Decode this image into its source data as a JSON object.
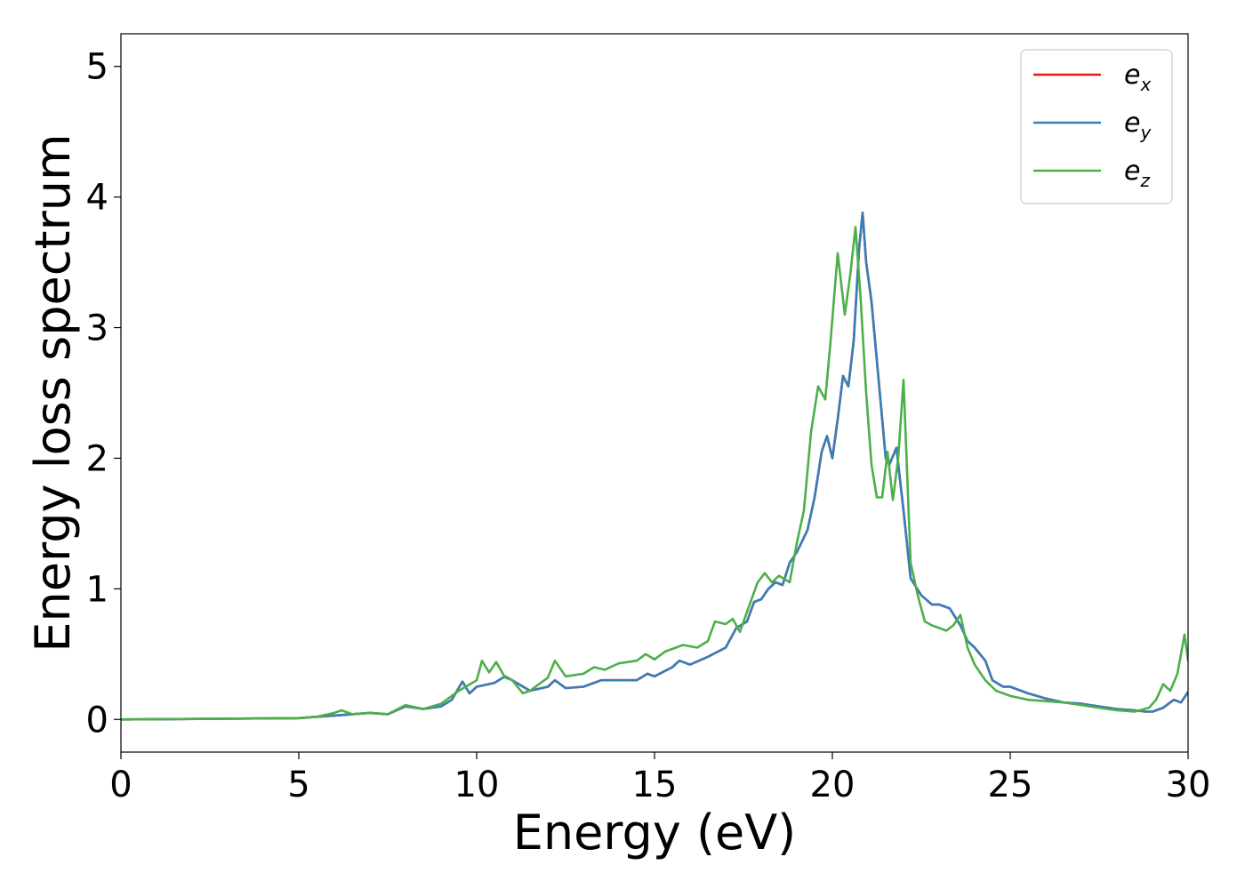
{
  "chart_data": {
    "type": "line",
    "xlabel": "Energy (eV)",
    "ylabel": "Energy loss spectrum",
    "xlim": [
      0,
      30
    ],
    "ylim": [
      -0.25,
      5.25
    ],
    "xticks": [
      0,
      5,
      10,
      15,
      20,
      25,
      30
    ],
    "yticks": [
      0,
      1,
      2,
      3,
      4,
      5
    ],
    "xtick_labels": [
      "0",
      "5",
      "10",
      "15",
      "20",
      "25",
      "30"
    ],
    "ytick_labels": [
      "0",
      "1",
      "2",
      "3",
      "4",
      "5"
    ],
    "grid": false,
    "legend_position": "top-right",
    "series": [
      {
        "name": "e_x",
        "legend_base": "e",
        "legend_sub": "x",
        "color": "#e41a1c",
        "x": [
          0,
          5,
          5.5,
          6,
          6.5,
          7,
          7.5,
          8,
          8.5,
          9,
          9.3,
          9.6,
          9.8,
          10,
          10.5,
          10.8,
          11,
          11.5,
          12,
          12.2,
          12.5,
          13,
          13.5,
          14,
          14.5,
          14.8,
          15,
          15.5,
          15.7,
          16,
          16.5,
          17,
          17.3,
          17.6,
          17.8,
          18,
          18.2,
          18.4,
          18.6,
          18.8,
          19,
          19.3,
          19.5,
          19.7,
          19.85,
          20,
          20.15,
          20.3,
          20.45,
          20.6,
          20.75,
          20.85,
          20.95,
          21.1,
          21.3,
          21.5,
          21.6,
          21.8,
          22,
          22.2,
          22.5,
          22.8,
          23,
          23.3,
          23.6,
          23.8,
          24,
          24.3,
          24.5,
          24.8,
          25,
          25.5,
          26,
          26.5,
          27,
          27.5,
          28,
          28.5,
          28.8,
          29,
          29.3,
          29.6,
          29.8,
          30
        ],
        "values": [
          0,
          0.01,
          0.02,
          0.03,
          0.04,
          0.05,
          0.04,
          0.1,
          0.08,
          0.1,
          0.15,
          0.29,
          0.2,
          0.25,
          0.28,
          0.33,
          0.3,
          0.22,
          0.25,
          0.3,
          0.24,
          0.25,
          0.3,
          0.3,
          0.3,
          0.35,
          0.33,
          0.4,
          0.45,
          0.42,
          0.48,
          0.55,
          0.7,
          0.75,
          0.9,
          0.92,
          1.0,
          1.05,
          1.03,
          1.2,
          1.28,
          1.45,
          1.7,
          2.05,
          2.17,
          2.0,
          2.3,
          2.63,
          2.55,
          2.9,
          3.6,
          3.88,
          3.5,
          3.2,
          2.6,
          2.0,
          1.95,
          2.08,
          1.6,
          1.08,
          0.95,
          0.88,
          0.88,
          0.85,
          0.72,
          0.6,
          0.55,
          0.45,
          0.3,
          0.25,
          0.25,
          0.2,
          0.16,
          0.13,
          0.12,
          0.1,
          0.08,
          0.07,
          0.06,
          0.06,
          0.09,
          0.15,
          0.13,
          0.21
        ]
      },
      {
        "name": "e_y",
        "legend_base": "e",
        "legend_sub": "y",
        "color": "#377eb8",
        "x": [
          0,
          5,
          5.5,
          6,
          6.5,
          7,
          7.5,
          8,
          8.5,
          9,
          9.3,
          9.6,
          9.8,
          10,
          10.5,
          10.8,
          11,
          11.5,
          12,
          12.2,
          12.5,
          13,
          13.5,
          14,
          14.5,
          14.8,
          15,
          15.5,
          15.7,
          16,
          16.5,
          17,
          17.3,
          17.6,
          17.8,
          18,
          18.2,
          18.4,
          18.6,
          18.8,
          19,
          19.3,
          19.5,
          19.7,
          19.85,
          20,
          20.15,
          20.3,
          20.45,
          20.6,
          20.75,
          20.85,
          20.95,
          21.1,
          21.3,
          21.5,
          21.6,
          21.8,
          22,
          22.2,
          22.5,
          22.8,
          23,
          23.3,
          23.6,
          23.8,
          24,
          24.3,
          24.5,
          24.8,
          25,
          25.5,
          26,
          26.5,
          27,
          27.5,
          28,
          28.5,
          28.8,
          29,
          29.3,
          29.6,
          29.8,
          30
        ],
        "values": [
          0,
          0.01,
          0.02,
          0.03,
          0.04,
          0.05,
          0.04,
          0.1,
          0.08,
          0.1,
          0.15,
          0.29,
          0.2,
          0.25,
          0.28,
          0.33,
          0.3,
          0.22,
          0.25,
          0.3,
          0.24,
          0.25,
          0.3,
          0.3,
          0.3,
          0.35,
          0.33,
          0.4,
          0.45,
          0.42,
          0.48,
          0.55,
          0.7,
          0.75,
          0.9,
          0.92,
          1.0,
          1.05,
          1.03,
          1.2,
          1.28,
          1.45,
          1.7,
          2.05,
          2.17,
          2.0,
          2.3,
          2.63,
          2.55,
          2.9,
          3.6,
          3.88,
          3.5,
          3.2,
          2.6,
          2.0,
          1.95,
          2.08,
          1.6,
          1.08,
          0.95,
          0.88,
          0.88,
          0.85,
          0.72,
          0.6,
          0.55,
          0.45,
          0.3,
          0.25,
          0.25,
          0.2,
          0.16,
          0.13,
          0.12,
          0.1,
          0.08,
          0.07,
          0.06,
          0.06,
          0.09,
          0.15,
          0.13,
          0.21
        ]
      },
      {
        "name": "e_z",
        "legend_base": "e",
        "legend_sub": "z",
        "color": "#4daf4a",
        "x": [
          0,
          5,
          5.5,
          6,
          6.2,
          6.5,
          7,
          7.5,
          8,
          8.5,
          9,
          9.5,
          10,
          10.15,
          10.35,
          10.55,
          10.8,
          11,
          11.3,
          11.5,
          12,
          12.2,
          12.5,
          13,
          13.3,
          13.6,
          14,
          14.5,
          14.75,
          15,
          15.3,
          15.6,
          15.8,
          16.2,
          16.5,
          16.7,
          17.0,
          17.2,
          17.4,
          17.7,
          17.9,
          18.1,
          18.3,
          18.5,
          18.8,
          19.0,
          19.2,
          19.4,
          19.6,
          19.8,
          19.95,
          20.15,
          20.35,
          20.5,
          20.65,
          20.8,
          20.95,
          21.1,
          21.25,
          21.4,
          21.55,
          21.7,
          21.85,
          22.0,
          22.2,
          22.4,
          22.6,
          22.8,
          23.0,
          23.2,
          23.4,
          23.6,
          23.8,
          24.0,
          24.3,
          24.6,
          25.0,
          25.5,
          26,
          26.5,
          27,
          27.5,
          28,
          28.5,
          28.9,
          29.1,
          29.3,
          29.5,
          29.7,
          29.9,
          30
        ],
        "values": [
          0,
          0.01,
          0.02,
          0.05,
          0.07,
          0.04,
          0.05,
          0.04,
          0.11,
          0.08,
          0.12,
          0.22,
          0.3,
          0.45,
          0.36,
          0.44,
          0.32,
          0.3,
          0.2,
          0.22,
          0.32,
          0.45,
          0.33,
          0.35,
          0.4,
          0.38,
          0.43,
          0.45,
          0.5,
          0.46,
          0.52,
          0.55,
          0.57,
          0.55,
          0.6,
          0.75,
          0.73,
          0.77,
          0.67,
          0.9,
          1.05,
          1.12,
          1.05,
          1.1,
          1.05,
          1.35,
          1.6,
          2.2,
          2.55,
          2.45,
          2.9,
          3.57,
          3.1,
          3.4,
          3.77,
          3.2,
          2.5,
          1.95,
          1.7,
          1.7,
          2.05,
          1.68,
          2.0,
          2.6,
          1.2,
          0.95,
          0.75,
          0.72,
          0.7,
          0.68,
          0.72,
          0.8,
          0.55,
          0.42,
          0.3,
          0.22,
          0.18,
          0.15,
          0.14,
          0.13,
          0.11,
          0.09,
          0.07,
          0.06,
          0.09,
          0.15,
          0.27,
          0.22,
          0.35,
          0.65,
          0.45
        ]
      }
    ]
  }
}
